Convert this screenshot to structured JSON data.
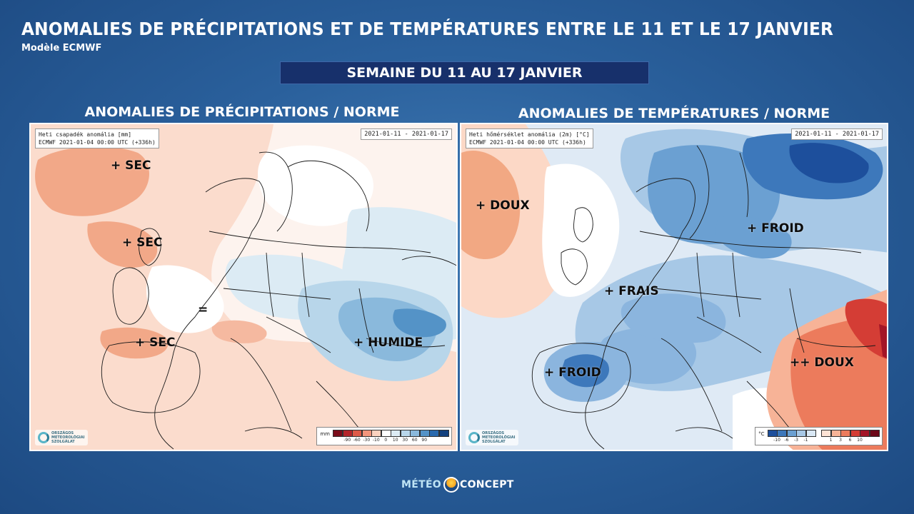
{
  "header": {
    "title": "ANOMALIES DE PRÉCIPITATIONS ET DE TEMPÉRATURES ENTRE LE 11 ET LE 17 JANVIER",
    "subtitle": "Modèle ECMWF",
    "week_banner": "SEMAINE DU 11 AU 17 JANVIER"
  },
  "left_panel": {
    "title": "ANOMALIES DE PRÉCIPITATIONS / NORME",
    "info_line1": "Heti csapadék anomália [mm]",
    "info_line2": "ECMWF 2021-01-04 00:00 UTC (+336h)",
    "date_range": "2021-01-11 - 2021-01-17",
    "labels": {
      "sec_north": "+ SEC",
      "sec_mid": "+ SEC",
      "sec_south": "+ SEC",
      "equal": "=",
      "humide": "+ HUMIDE"
    },
    "legend": {
      "unit": "mm",
      "colors": [
        "#7a0c1a",
        "#b3262b",
        "#de5a48",
        "#f2957c",
        "#fbd2bf",
        "#ffffff",
        "#dcebf4",
        "#b8d6ea",
        "#8ab9dc",
        "#5493c7",
        "#2a6aae",
        "#12417f"
      ],
      "ticks": [
        "-90",
        "-60",
        "-30",
        "-10",
        "0",
        "10",
        "30",
        "60",
        "90"
      ]
    }
  },
  "right_panel": {
    "title": "ANOMALIES DE TEMPÉRATURES / NORME",
    "info_line1": "Heti hőmérséklet anomália (2m) [°C]",
    "info_line2": "ECMWF 2021-01-04 00:00 UTC (+336h)",
    "date_range": "2021-01-11 - 2021-01-17",
    "labels": {
      "doux_west": "+ DOUX",
      "froid_east": "+ FROID",
      "frais": "+ FRAIS",
      "froid_spain": "+ FROID",
      "doux_southeast": "++ DOUX"
    },
    "legend": {
      "unit": "°C",
      "cold_colors": [
        "#1d4f9c",
        "#3d78bb",
        "#6ba0d2",
        "#a7c8e6",
        "#d9e8f5"
      ],
      "warm_colors": [
        "#fde3d5",
        "#f7b397",
        "#ec7b5c",
        "#d43d35",
        "#a31526",
        "#6d0818"
      ],
      "cold_ticks": [
        "-10",
        "-6",
        "-3",
        "-1"
      ],
      "warm_ticks": [
        "1",
        "3",
        "6",
        "10"
      ]
    }
  },
  "logo": {
    "line1": "ORSZÁGOS",
    "line2": "METEOROLÓGIAI",
    "line3": "SZOLGÁLAT"
  },
  "brand": {
    "part1": "MÉTÉO",
    "part2": "CONCEPT"
  }
}
